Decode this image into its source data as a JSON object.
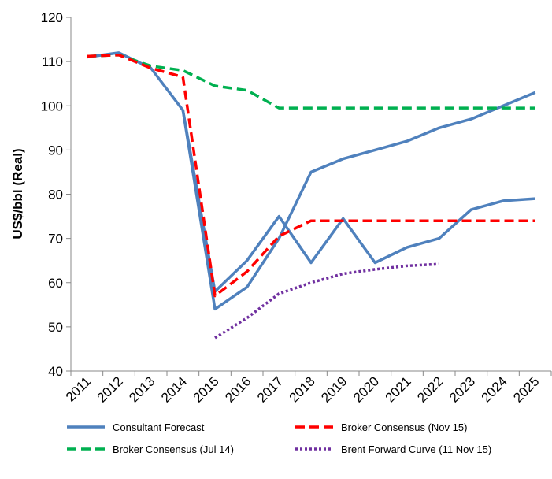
{
  "chart_data": {
    "type": "line",
    "ylabel": "US$/bbl (Real)",
    "categories": [
      "2011",
      "2012",
      "2013",
      "2014",
      "2015",
      "2016",
      "2017",
      "2018",
      "2019",
      "2020",
      "2021",
      "2022",
      "2023",
      "2024",
      "2025"
    ],
    "ylim": [
      40,
      120
    ],
    "yticks": [
      40,
      50,
      60,
      70,
      80,
      90,
      100,
      110,
      120
    ],
    "grid": false,
    "series": [
      {
        "name": "Consultant Forecast",
        "color": "#4f81bd",
        "dash": "solid",
        "values": [
          111,
          112,
          108.5,
          99,
          58,
          65,
          75,
          64.5,
          74.5,
          64.5,
          68,
          70,
          76.5,
          78.5,
          79
        ]
      },
      {
        "name": "Broker Consensus (Nov 15)",
        "color": "#ff0000",
        "dash": "dashed",
        "values": [
          111.2,
          111.5,
          108.5,
          106.5,
          57,
          62.5,
          70.5,
          74,
          74,
          74,
          74,
          74,
          74,
          74,
          74
        ]
      },
      {
        "name": "Broker Consensus (Jul 14)",
        "color": "#00b050",
        "dash": "dashed",
        "values": [
          111.2,
          111.5,
          109,
          108,
          104.5,
          103.5,
          99.5,
          99.5,
          99.5,
          99.5,
          99.5,
          99.5,
          99.5,
          99.5,
          99.5
        ]
      },
      {
        "name": "Brent Forward Curve (11 Nov 15)",
        "color": "#7030a0",
        "dash": "dotted",
        "values": [
          null,
          null,
          null,
          null,
          47.5,
          52,
          57.5,
          60,
          62,
          63,
          63.8,
          64.2,
          null,
          null,
          null
        ]
      },
      {
        "color": "#4f81bd",
        "dash": "solid",
        "values": [
          null,
          null,
          null,
          99,
          54,
          59,
          70,
          85,
          88,
          90,
          92,
          95,
          97,
          100,
          103
        ]
      }
    ]
  }
}
